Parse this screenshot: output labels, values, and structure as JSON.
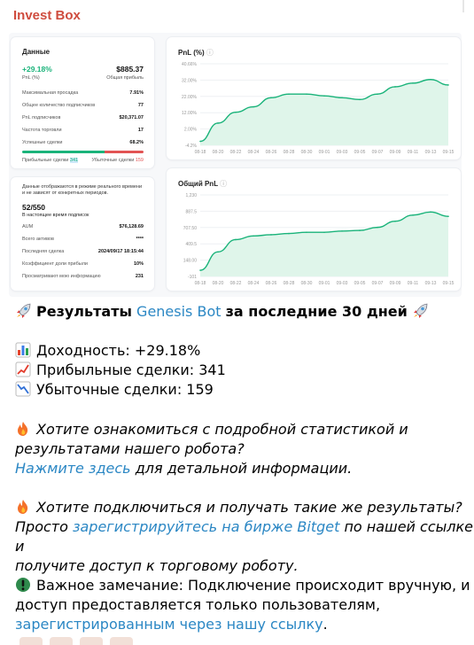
{
  "sender": "Invest Box",
  "card_data": {
    "title": "Данные",
    "pnl_pct": "+29.18%",
    "pnl_pct_label": "PnL (%)",
    "total_profit": "$885.37",
    "total_profit_label": "Общая прибыль",
    "rows": [
      {
        "label": "Максимальная просадка",
        "value": "7.91%"
      },
      {
        "label": "Общее количество подписчиков",
        "value": "77"
      },
      {
        "label": "PnL подписчиков",
        "value": "$20,371.07"
      },
      {
        "label": "Частота торговли",
        "value": "17"
      },
      {
        "label": "Успешные сделки",
        "value": "68.2%"
      }
    ],
    "profit_trades_label": "Прибыльные сделки",
    "profit_trades_value": "341",
    "loss_trades_label": "Убыточные сделки",
    "loss_trades_value": "159"
  },
  "card_info": {
    "note": "Данные отображаются в режиме реального времени и не зависят от конкретных периодов.",
    "slots": "52/550",
    "slots_label": "В настоящее время подписок",
    "rows": [
      {
        "label": "AUM",
        "value": "$76,128.69"
      },
      {
        "label": "Всего активов",
        "value": "****"
      },
      {
        "label": "Последняя сделка",
        "value": "2024/09/17 18:15:44"
      },
      {
        "label": "Коэффициент доли прибыли",
        "value": "10%"
      },
      {
        "label": "Просматривают мою информацию",
        "value": "231"
      }
    ]
  },
  "chart_data": [
    {
      "type": "area",
      "title": "PnL (%)",
      "x": [
        "08-18",
        "08-20",
        "08-22",
        "08-24",
        "08-26",
        "08-28",
        "08-30",
        "09-01",
        "09-03",
        "09-05",
        "09-07",
        "09-09",
        "09-11",
        "09-13",
        "09-15"
      ],
      "y_ticks": [
        "40.66%",
        "32.00%",
        "22.00%",
        "12.00%",
        "2.00%",
        "-4.2%"
      ],
      "ylim": [
        -4.2,
        40.66
      ],
      "values": [
        -2,
        8,
        14,
        17,
        22,
        24,
        24,
        23,
        22,
        21,
        24,
        28,
        30,
        32,
        29
      ]
    },
    {
      "type": "area",
      "title": "Общий PnL",
      "x": [
        "08-18",
        "08-20",
        "08-22",
        "08-24",
        "08-26",
        "08-28",
        "08-30",
        "09-01",
        "09-03",
        "09-05",
        "09-07",
        "09-09",
        "09-11",
        "09-13",
        "09-15"
      ],
      "y_ticks": [
        "1,230",
        "887.5",
        "707.50",
        "409.5",
        "148.00",
        "-101"
      ],
      "ylim": [
        -101,
        1230
      ],
      "values": [
        0,
        300,
        500,
        560,
        580,
        600,
        620,
        620,
        640,
        650,
        700,
        800,
        900,
        950,
        880
      ]
    }
  ],
  "message": {
    "heading_pre": "Результаты",
    "heading_bot": "Genesis Bot",
    "heading_post": "за последние 30 дней",
    "yield_line": "Доходность: +29.18%",
    "profit_line": "Прибыльные сделки: 341",
    "loss_line": "Убыточные сделки: 159",
    "para1_line1": "Хотите ознакомиться с подробной статистикой и",
    "para1_line2": "результатами нашего робота?",
    "para1_link": "Нажмите здесь",
    "para1_tail": "для детальной информации.",
    "para2_line1": "Хотите подключиться и получать такие же результаты?",
    "para2_pre": "Просто",
    "para2_link": "зарегистрируйтесь на бирже Bitget",
    "para2_post": "по нашей ссылке и",
    "para2_line3": "получите доступ к торговому роботу.",
    "para3_line1": "Важное замечание: Подключение происходит вручную, и",
    "para3_line2": "доступ предоставляется только пользователям,",
    "para3_link": "зарегистрированным через нашу ссылку",
    "para3_end": "."
  },
  "colors": {
    "green": "#1ab37a",
    "red": "#e25353",
    "link": "#2b87c4",
    "sender": "#cf4c3e"
  }
}
